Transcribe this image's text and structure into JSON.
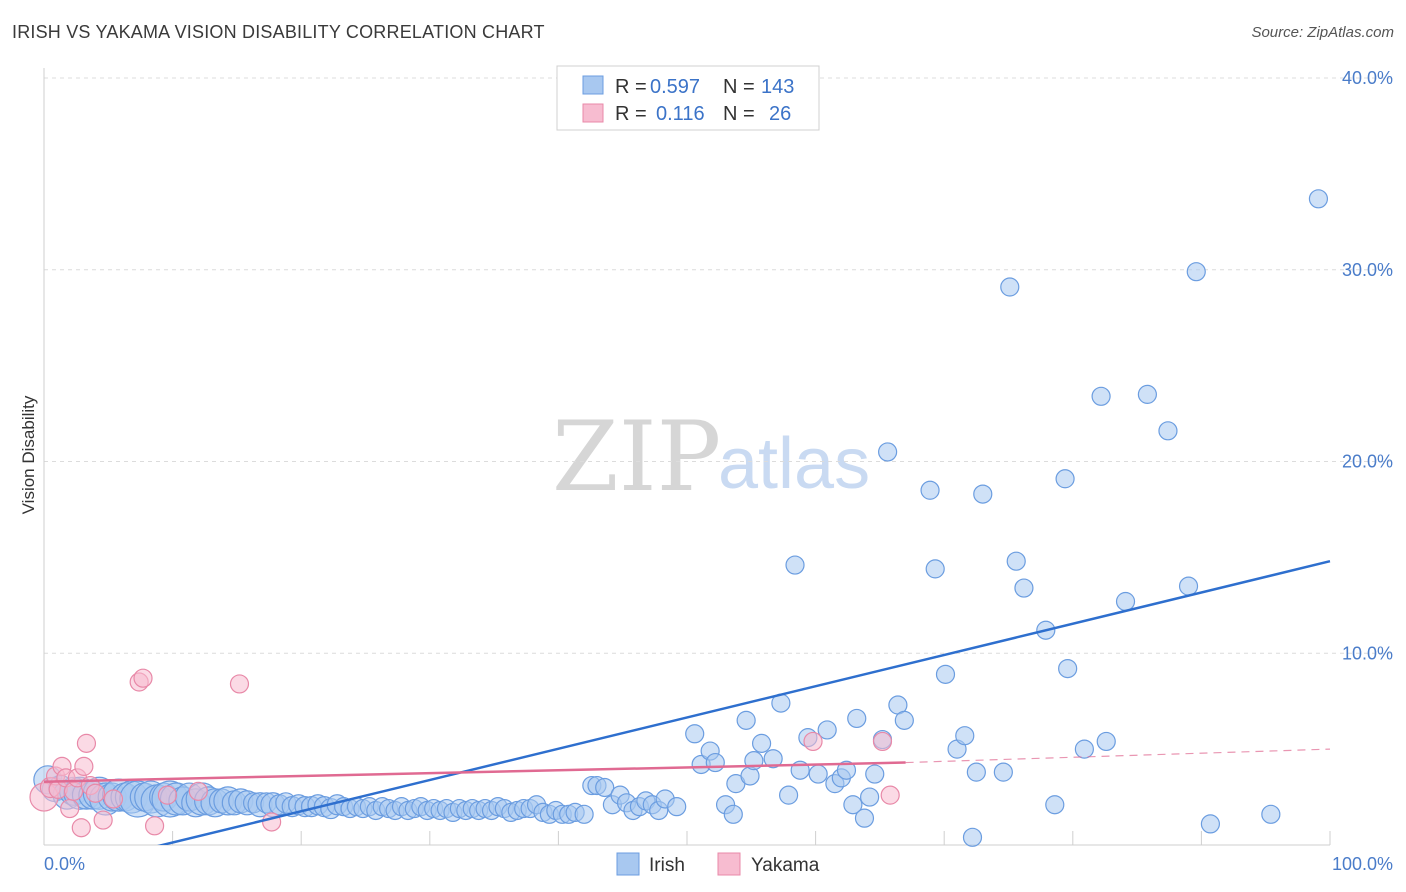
{
  "title": "IRISH VS YAKAMA VISION DISABILITY CORRELATION CHART",
  "source": "Source: ZipAtlas.com",
  "watermark": {
    "zip": "ZIP",
    "atlas": "atlas"
  },
  "colors": {
    "irish_fill": "#a8c8f0",
    "irish_stroke": "#6b9de0",
    "irish_line": "#2e6fce",
    "yakama_fill": "#f7bcd0",
    "yakama_stroke": "#e889a8",
    "yakama_line": "#e06a92",
    "grid": "#dcdcdc",
    "tick_label": "#4a7cc9"
  },
  "legend": {
    "r_label": "R =",
    "n_label": "N =",
    "rows": [
      {
        "series": "Irish",
        "r": "0.597",
        "n": "143"
      },
      {
        "series": "Yakama",
        "r": "0.116",
        "n": "26"
      }
    ]
  },
  "chart_data": {
    "type": "scatter",
    "ylabel": "Vision Disability",
    "xlim": [
      0,
      100
    ],
    "ylim": [
      0,
      40
    ],
    "x_tick_labels": [
      {
        "value": 0,
        "label": "0.0%"
      },
      {
        "value": 100,
        "label": "100.0%"
      }
    ],
    "y_tick_labels": [
      {
        "value": 10,
        "label": "10.0%"
      },
      {
        "value": 20,
        "label": "20.0%"
      },
      {
        "value": 30,
        "label": "30.0%"
      },
      {
        "value": 40,
        "label": "40.0%"
      }
    ],
    "grid": true,
    "legend_position": "top-center",
    "series": [
      {
        "name": "Irish",
        "r": 0.597,
        "n": 143,
        "trend": {
          "x": [
            0,
            100
          ],
          "y": [
            -1.5,
            14.8
          ]
        },
        "points": [
          [
            0.3,
            3.4,
            14
          ],
          [
            0.8,
            2.9,
            12
          ],
          [
            1.3,
            3.0,
            12
          ],
          [
            1.8,
            2.6,
            14
          ],
          [
            2.3,
            2.8,
            14
          ],
          [
            2.8,
            2.7,
            16
          ],
          [
            3.3,
            2.6,
            14
          ],
          [
            3.8,
            2.6,
            14
          ],
          [
            4.3,
            2.7,
            16
          ],
          [
            4.8,
            2.4,
            16
          ],
          [
            5.3,
            2.5,
            14
          ],
          [
            5.8,
            2.6,
            16
          ],
          [
            6.3,
            2.5,
            14
          ],
          [
            6.8,
            2.5,
            16
          ],
          [
            7.3,
            2.4,
            18
          ],
          [
            7.8,
            2.5,
            14
          ],
          [
            8.3,
            2.5,
            16
          ],
          [
            8.8,
            2.3,
            16
          ],
          [
            9.3,
            2.5,
            14
          ],
          [
            9.8,
            2.4,
            18
          ],
          [
            10.3,
            2.4,
            16
          ],
          [
            10.8,
            2.3,
            14
          ],
          [
            11.3,
            2.5,
            14
          ],
          [
            11.8,
            2.2,
            14
          ],
          [
            12.3,
            2.4,
            16
          ],
          [
            12.8,
            2.3,
            14
          ],
          [
            13.3,
            2.2,
            14
          ],
          [
            13.8,
            2.3,
            12
          ],
          [
            14.3,
            2.3,
            14
          ],
          [
            14.8,
            2.2,
            12
          ],
          [
            15.3,
            2.3,
            12
          ],
          [
            15.8,
            2.2,
            12
          ],
          [
            16.3,
            2.2,
            10
          ],
          [
            16.8,
            2.1,
            12
          ],
          [
            17.3,
            2.2,
            10
          ],
          [
            17.8,
            2.1,
            12
          ],
          [
            18.3,
            2.1,
            10
          ],
          [
            18.8,
            2.2,
            10
          ],
          [
            19.3,
            2.0,
            10
          ],
          [
            19.8,
            2.1,
            10
          ],
          [
            20.3,
            2.0,
            10
          ],
          [
            20.8,
            2.0,
            10
          ],
          [
            21.3,
            2.1,
            10
          ],
          [
            21.8,
            2.0,
            10
          ],
          [
            22.3,
            1.9,
            10
          ],
          [
            22.8,
            2.1,
            10
          ],
          [
            23.3,
            2.0,
            9
          ],
          [
            23.8,
            1.9,
            9
          ],
          [
            24.3,
            2.0,
            9
          ],
          [
            24.8,
            1.9,
            9
          ],
          [
            25.3,
            2.0,
            9
          ],
          [
            25.8,
            1.8,
            9
          ],
          [
            26.3,
            2.0,
            9
          ],
          [
            26.8,
            1.9,
            9
          ],
          [
            27.3,
            1.8,
            9
          ],
          [
            27.8,
            2.0,
            9
          ],
          [
            28.3,
            1.8,
            9
          ],
          [
            28.8,
            1.9,
            9
          ],
          [
            29.3,
            2.0,
            9
          ],
          [
            29.8,
            1.8,
            9
          ],
          [
            30.3,
            1.9,
            9
          ],
          [
            30.8,
            1.8,
            9
          ],
          [
            31.3,
            1.9,
            9
          ],
          [
            31.8,
            1.7,
            9
          ],
          [
            32.3,
            1.9,
            9
          ],
          [
            32.8,
            1.8,
            9
          ],
          [
            33.3,
            1.9,
            9
          ],
          [
            33.8,
            1.8,
            9
          ],
          [
            34.3,
            1.9,
            9
          ],
          [
            34.8,
            1.8,
            9
          ],
          [
            35.3,
            2.0,
            9
          ],
          [
            35.8,
            1.9,
            9
          ],
          [
            36.3,
            1.7,
            9
          ],
          [
            36.8,
            1.8,
            9
          ],
          [
            37.3,
            1.9,
            9
          ],
          [
            37.8,
            1.9,
            9
          ],
          [
            38.3,
            2.1,
            9
          ],
          [
            38.8,
            1.7,
            9
          ],
          [
            39.3,
            1.6,
            9
          ],
          [
            39.8,
            1.8,
            9
          ],
          [
            40.3,
            1.6,
            9
          ],
          [
            40.8,
            1.6,
            9
          ],
          [
            41.3,
            1.7,
            9
          ],
          [
            42.0,
            1.6,
            9
          ],
          [
            42.6,
            3.1,
            9
          ],
          [
            43.0,
            3.1,
            9
          ],
          [
            43.6,
            3.0,
            9
          ],
          [
            44.2,
            2.1,
            9
          ],
          [
            44.8,
            2.6,
            9
          ],
          [
            45.3,
            2.2,
            9
          ],
          [
            45.8,
            1.8,
            9
          ],
          [
            46.3,
            2.0,
            9
          ],
          [
            46.8,
            2.3,
            9
          ],
          [
            47.3,
            2.1,
            9
          ],
          [
            47.8,
            1.8,
            9
          ],
          [
            48.3,
            2.4,
            9
          ],
          [
            49.2,
            2.0,
            9
          ],
          [
            50.6,
            5.8,
            9
          ],
          [
            51.1,
            4.2,
            9
          ],
          [
            51.8,
            4.9,
            9
          ],
          [
            52.2,
            4.3,
            9
          ],
          [
            53.0,
            2.1,
            9
          ],
          [
            53.6,
            1.6,
            9
          ],
          [
            53.8,
            3.2,
            9
          ],
          [
            54.6,
            6.5,
            9
          ],
          [
            54.9,
            3.6,
            9
          ],
          [
            55.2,
            4.4,
            9
          ],
          [
            55.8,
            5.3,
            9
          ],
          [
            56.7,
            4.5,
            9
          ],
          [
            57.3,
            7.4,
            9
          ],
          [
            57.9,
            2.6,
            9
          ],
          [
            58.4,
            14.6,
            9
          ],
          [
            58.8,
            3.9,
            9
          ],
          [
            59.4,
            5.6,
            9
          ],
          [
            60.2,
            3.7,
            9
          ],
          [
            60.9,
            6.0,
            9
          ],
          [
            61.5,
            3.2,
            9
          ],
          [
            62.0,
            3.5,
            9
          ],
          [
            62.4,
            3.9,
            9
          ],
          [
            62.9,
            2.1,
            9
          ],
          [
            63.2,
            6.6,
            9
          ],
          [
            63.8,
            1.4,
            9
          ],
          [
            64.2,
            2.5,
            9
          ],
          [
            64.6,
            3.7,
            9
          ],
          [
            65.2,
            5.5,
            9
          ],
          [
            65.6,
            20.5,
            9
          ],
          [
            66.4,
            7.3,
            9
          ],
          [
            66.9,
            6.5,
            9
          ],
          [
            68.9,
            18.5,
            9
          ],
          [
            69.3,
            14.4,
            9
          ],
          [
            70.1,
            8.9,
            9
          ],
          [
            71.0,
            5.0,
            9
          ],
          [
            71.6,
            5.7,
            9
          ],
          [
            72.2,
            0.4,
            9
          ],
          [
            72.5,
            3.8,
            9
          ],
          [
            73.0,
            18.3,
            9
          ],
          [
            74.6,
            3.8,
            9
          ],
          [
            75.1,
            29.1,
            9
          ],
          [
            75.6,
            14.8,
            9
          ],
          [
            76.2,
            13.4,
            9
          ],
          [
            77.9,
            11.2,
            9
          ],
          [
            78.6,
            2.1,
            9
          ],
          [
            79.4,
            19.1,
            9
          ],
          [
            79.6,
            9.2,
            9
          ],
          [
            80.9,
            5.0,
            9
          ],
          [
            82.2,
            23.4,
            9
          ],
          [
            82.6,
            5.4,
            9
          ],
          [
            84.1,
            12.7,
            9
          ],
          [
            85.8,
            23.5,
            9
          ],
          [
            87.4,
            21.6,
            9
          ],
          [
            89.0,
            13.5,
            9
          ],
          [
            89.6,
            29.9,
            9
          ],
          [
            90.7,
            1.1,
            9
          ],
          [
            95.4,
            1.6,
            9
          ],
          [
            99.1,
            33.7,
            9
          ]
        ]
      },
      {
        "name": "Yakama",
        "r": 0.116,
        "n": 26,
        "trend": {
          "x": [
            0,
            67
          ],
          "y": [
            3.3,
            4.3
          ]
        },
        "trend_extension": {
          "x": [
            67,
            100
          ],
          "y": [
            4.3,
            5.0
          ]
        },
        "points": [
          [
            0.0,
            2.5,
            14
          ],
          [
            0.5,
            3.0,
            10
          ],
          [
            0.9,
            3.6,
            9
          ],
          [
            1.1,
            2.9,
            9
          ],
          [
            1.4,
            4.1,
            9
          ],
          [
            1.7,
            3.5,
            9
          ],
          [
            2.0,
            1.9,
            9
          ],
          [
            2.3,
            2.8,
            9
          ],
          [
            2.6,
            3.5,
            9
          ],
          [
            2.9,
            0.9,
            9
          ],
          [
            3.1,
            4.1,
            9
          ],
          [
            3.3,
            5.3,
            9
          ],
          [
            3.6,
            3.1,
            9
          ],
          [
            4.0,
            2.7,
            9
          ],
          [
            4.6,
            1.3,
            9
          ],
          [
            5.4,
            2.4,
            9
          ],
          [
            7.4,
            8.5,
            9
          ],
          [
            7.7,
            8.7,
            9
          ],
          [
            8.6,
            1.0,
            9
          ],
          [
            9.6,
            2.6,
            9
          ],
          [
            12.0,
            2.8,
            9
          ],
          [
            15.2,
            8.4,
            9
          ],
          [
            17.7,
            1.2,
            9
          ],
          [
            59.8,
            5.4,
            9
          ],
          [
            65.2,
            5.4,
            9
          ],
          [
            65.8,
            2.6,
            9
          ]
        ]
      }
    ]
  }
}
